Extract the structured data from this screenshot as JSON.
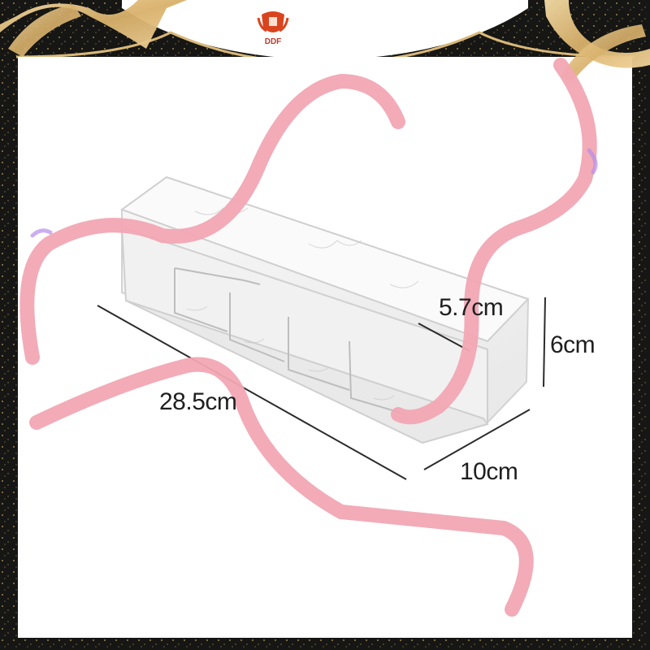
{
  "brand": {
    "logo_icon": "shield-crest-logo",
    "logo_color": "#d9441e",
    "text": "DDF"
  },
  "frame": {
    "color": "#1a1a18",
    "ribbon_gold": "#e8c98f",
    "ribbon_pink": "#f2a7b4",
    "ribbon_violet": "#b58be8"
  },
  "product": {
    "kind": "clear acrylic organizer box with 4 compartments",
    "dimensions": {
      "width": "28.5cm",
      "inner_height": "5.7cm",
      "height": "6cm",
      "depth": "10cm"
    }
  }
}
